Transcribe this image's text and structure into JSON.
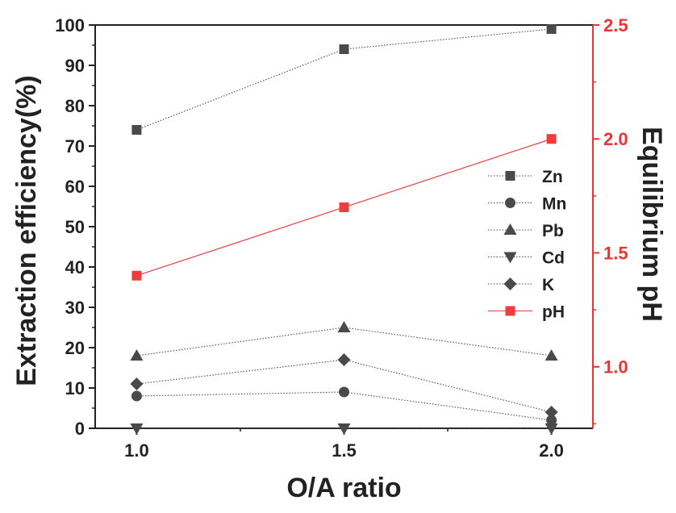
{
  "chart_data": {
    "type": "line",
    "title": "",
    "xlabel": "O/A ratio",
    "ylabel": "Extraction efficiency(%)",
    "y2label": "Equilibrium pH",
    "x": [
      1.0,
      1.5,
      2.0
    ],
    "xlim": [
      0.9,
      2.1
    ],
    "ylim": [
      0,
      100
    ],
    "y2lim": [
      0.73,
      2.5
    ],
    "x_ticks": [
      "1.0",
      "1.5",
      "2.0"
    ],
    "y_ticks": [
      "0",
      "10",
      "20",
      "30",
      "40",
      "50",
      "60",
      "70",
      "80",
      "90",
      "100"
    ],
    "y2_ticks": [
      "1.0",
      "1.5",
      "2.0",
      "2.5"
    ],
    "legend_position": "right",
    "series": [
      {
        "name": "Zn",
        "axis": "left",
        "marker": "square",
        "color": "#4a4a4a",
        "line_style": "dotted",
        "values": [
          74,
          94,
          99
        ]
      },
      {
        "name": "Mn",
        "axis": "left",
        "marker": "circle",
        "color": "#4a4a4a",
        "line_style": "dotted",
        "values": [
          8,
          9,
          2
        ]
      },
      {
        "name": "Pb",
        "axis": "left",
        "marker": "triangle-up",
        "color": "#4a4a4a",
        "line_style": "dotted",
        "values": [
          18,
          25,
          18
        ]
      },
      {
        "name": "Cd",
        "axis": "left",
        "marker": "triangle-down",
        "color": "#4a4a4a",
        "line_style": "dotted",
        "values": [
          0,
          0,
          0
        ]
      },
      {
        "name": "K",
        "axis": "left",
        "marker": "diamond",
        "color": "#4a4a4a",
        "line_style": "dotted",
        "values": [
          11,
          17,
          4
        ]
      },
      {
        "name": "pH",
        "axis": "right",
        "marker": "square",
        "color": "#f03c3c",
        "line_style": "solid",
        "values": [
          1.4,
          1.7,
          2.0
        ]
      }
    ],
    "colors": {
      "left_axis": "#222222",
      "right_axis": "#ee3333"
    }
  }
}
